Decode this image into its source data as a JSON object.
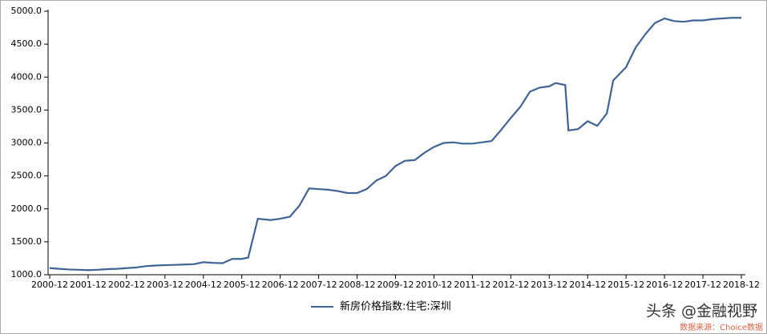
{
  "chart_data": {
    "type": "line",
    "x": [
      "2000-12",
      "2001-03",
      "2001-06",
      "2001-09",
      "2001-12",
      "2002-03",
      "2002-06",
      "2002-09",
      "2002-12",
      "2003-03",
      "2003-06",
      "2003-09",
      "2003-12",
      "2004-03",
      "2004-06",
      "2004-09",
      "2004-12",
      "2005-03",
      "2005-06",
      "2005-09",
      "2005-12",
      "2006-02",
      "2006-05",
      "2006-09",
      "2006-12",
      "2007-03",
      "2007-06",
      "2007-09",
      "2007-12",
      "2008-03",
      "2008-06",
      "2008-09",
      "2008-12",
      "2009-03",
      "2009-06",
      "2009-09",
      "2009-12",
      "2010-03",
      "2010-06",
      "2010-09",
      "2010-12",
      "2011-03",
      "2011-06",
      "2011-09",
      "2011-12",
      "2012-03",
      "2012-06",
      "2012-09",
      "2012-12",
      "2013-03",
      "2013-06",
      "2013-09",
      "2013-12",
      "2014-02",
      "2014-05",
      "2014-06",
      "2014-09",
      "2014-12",
      "2015-03",
      "2015-06",
      "2015-08",
      "2015-12",
      "2016-03",
      "2016-06",
      "2016-09",
      "2016-12",
      "2017-03",
      "2017-06",
      "2017-09",
      "2017-12",
      "2018-03",
      "2018-06",
      "2018-09",
      "2018-12"
    ],
    "series": [
      {
        "name": "新房价格指数:住宅:深圳",
        "color": "#3f6394",
        "values": [
          1100,
          1090,
          1080,
          1075,
          1070,
          1075,
          1085,
          1090,
          1100,
          1110,
          1130,
          1140,
          1145,
          1150,
          1155,
          1160,
          1190,
          1180,
          1175,
          1240,
          1240,
          1260,
          1850,
          1830,
          1850,
          1880,
          2050,
          2310,
          2300,
          2290,
          2270,
          2240,
          2240,
          2300,
          2430,
          2500,
          2650,
          2730,
          2740,
          2850,
          2940,
          3000,
          3010,
          2990,
          2990,
          3010,
          3030,
          3200,
          3380,
          3550,
          3780,
          3840,
          3860,
          3910,
          3880,
          3190,
          3210,
          3330,
          3260,
          3450,
          3950,
          4150,
          4450,
          4650,
          4820,
          4890,
          4850,
          4840,
          4860,
          4860,
          4880,
          4890,
          4900,
          4900
        ]
      }
    ],
    "xlim": [
      "2000-12",
      "2018-12"
    ],
    "xticks": [
      "2000-12",
      "2001-12",
      "2002-12",
      "2003-12",
      "2004-12",
      "2005-12",
      "2006-12",
      "2007-12",
      "2008-12",
      "2009-12",
      "2010-12",
      "2011-12",
      "2012-12",
      "2013-12",
      "2014-12",
      "2015-12",
      "2016-12",
      "2017-12",
      "2018-12"
    ],
    "ylim": [
      1000,
      5000
    ],
    "yticks": [
      {
        "value": 1000,
        "label": "1000.0"
      },
      {
        "value": 1500,
        "label": "1500.0"
      },
      {
        "value": 2000,
        "label": "2000.0"
      },
      {
        "value": 2500,
        "label": "2500.0"
      },
      {
        "value": 3000,
        "label": "3000.0"
      },
      {
        "value": 3500,
        "label": "3500.0"
      },
      {
        "value": 4000,
        "label": "4000.0"
      },
      {
        "value": 4500,
        "label": "4500.0"
      },
      {
        "value": 5000,
        "label": "5000.0"
      }
    ],
    "watermark": "头条 @金融视野",
    "source": "数据来源：Choice数据"
  }
}
